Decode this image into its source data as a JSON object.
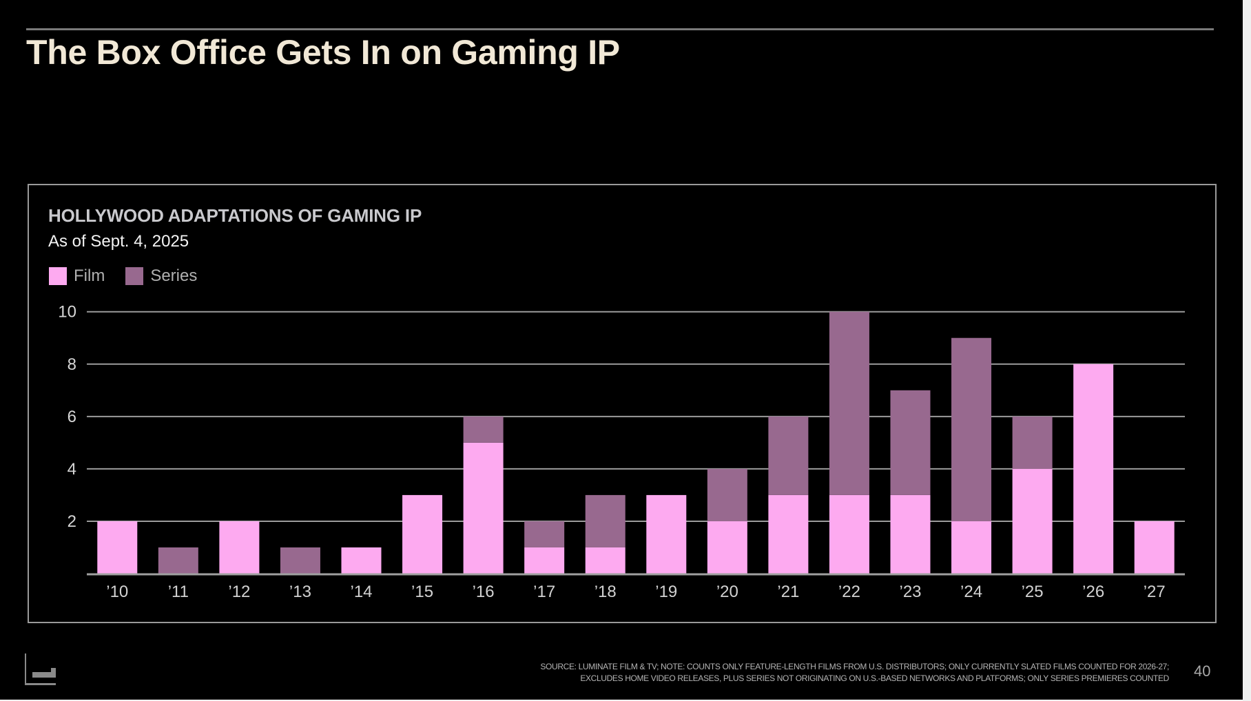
{
  "slide": {
    "title": "The Box Office Gets In on Gaming IP",
    "page_number": "40",
    "footer_note_lines": [
      "SOURCE: LUMINATE FILM & TV; NOTE: COUNTS ONLY FEATURE-LENGTH FILMS FROM U.S. DISTRIBUTORS; ONLY CURRENTLY SLATED FILMS COUNTED FOR 2026-27;",
      "EXCLUDES HOME VIDEO RELEASES, PLUS SERIES NOT ORIGINATING ON U.S.-BASED NETWORKS AND PLATFORMS; ONLY SERIES PREMIERES COUNTED"
    ],
    "logo_icon": "publisher-logo-icon"
  },
  "chart_data": {
    "type": "bar",
    "stacked": true,
    "title": "HOLLYWOOD ADAPTATIONS OF GAMING IP",
    "subtitle": "As of Sept. 4, 2025",
    "xlabel": "",
    "ylabel": "",
    "categories": [
      "’10",
      "’11",
      "’12",
      "’13",
      "’14",
      "’15",
      "’16",
      "’17",
      "’18",
      "’19",
      "’20",
      "’21",
      "’22",
      "’23",
      "’24",
      "’25",
      "’26",
      "’27"
    ],
    "series": [
      {
        "name": "Film",
        "color": "#fdaaf0",
        "values": [
          2,
          0,
          2,
          0,
          1,
          3,
          5,
          1,
          1,
          3,
          2,
          3,
          3,
          3,
          2,
          4,
          8,
          2
        ]
      },
      {
        "name": "Series",
        "color": "#98698f",
        "values": [
          0,
          1,
          0,
          1,
          0,
          0,
          1,
          1,
          2,
          0,
          2,
          3,
          7,
          4,
          7,
          2,
          0,
          0
        ]
      }
    ],
    "ylim": [
      0,
      10
    ],
    "yticks": [
      2,
      4,
      6,
      8,
      10
    ],
    "grid": true,
    "legend_position": "top-left"
  }
}
